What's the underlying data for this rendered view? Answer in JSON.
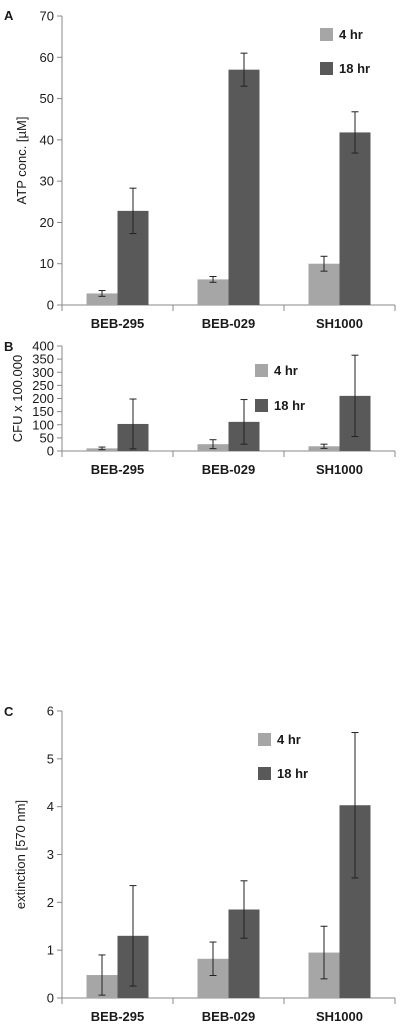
{
  "chart_data": [
    {
      "panel": "A",
      "type": "bar",
      "title": "",
      "xlabel": "",
      "ylabel": "ATP conc. [µM]",
      "ylim": [
        0,
        70
      ],
      "yticks": [
        "0",
        "10",
        "20",
        "30",
        "40",
        "50",
        "60",
        "70"
      ],
      "categories": [
        "BEB-295",
        "BEB-029",
        "SH1000"
      ],
      "legend_position": "top-right",
      "grid": false,
      "series": [
        {
          "name": "4 hr",
          "color": "#a6a6a6",
          "values": [
            2.8,
            6.2,
            10.0
          ],
          "errors": [
            0.7,
            0.7,
            1.8
          ]
        },
        {
          "name": "18 hr",
          "color": "#595959",
          "values": [
            22.8,
            57.0,
            41.8
          ],
          "errors": [
            5.5,
            4.0,
            5.0
          ]
        }
      ]
    },
    {
      "panel": "B",
      "type": "bar",
      "title": "",
      "xlabel": "",
      "ylabel": "CFU x 100.000",
      "ylim": [
        0,
        400
      ],
      "yticks": [
        "0",
        "50",
        "100",
        "150",
        "200",
        "250",
        "300",
        "350",
        "400"
      ],
      "categories": [
        "BEB-295",
        "BEB-029",
        "SH1000"
      ],
      "legend_position": "top-right",
      "grid": false,
      "series": [
        {
          "name": "4 hr",
          "color": "#a6a6a6",
          "values": [
            10,
            26,
            18
          ],
          "errors": [
            5,
            17,
            8
          ]
        },
        {
          "name": "18 hr",
          "color": "#595959",
          "values": [
            103,
            111,
            210
          ],
          "errors": [
            95,
            85,
            155
          ]
        }
      ]
    },
    {
      "panel": "C",
      "type": "bar",
      "title": "",
      "xlabel": "",
      "ylabel": "extinction [570 nm]",
      "ylim": [
        0,
        6
      ],
      "yticks": [
        "0",
        "1",
        "2",
        "3",
        "4",
        "5",
        "6"
      ],
      "categories": [
        "BEB-295",
        "BEB-029",
        "SH1000"
      ],
      "legend_position": "top-right",
      "grid": false,
      "series": [
        {
          "name": "4 hr",
          "color": "#a6a6a6",
          "values": [
            0.48,
            0.82,
            0.95
          ],
          "errors": [
            0.42,
            0.35,
            0.55
          ]
        },
        {
          "name": "18 hr",
          "color": "#595959",
          "values": [
            1.3,
            1.85,
            4.03
          ],
          "errors": [
            1.05,
            0.6,
            1.52
          ]
        }
      ]
    }
  ]
}
